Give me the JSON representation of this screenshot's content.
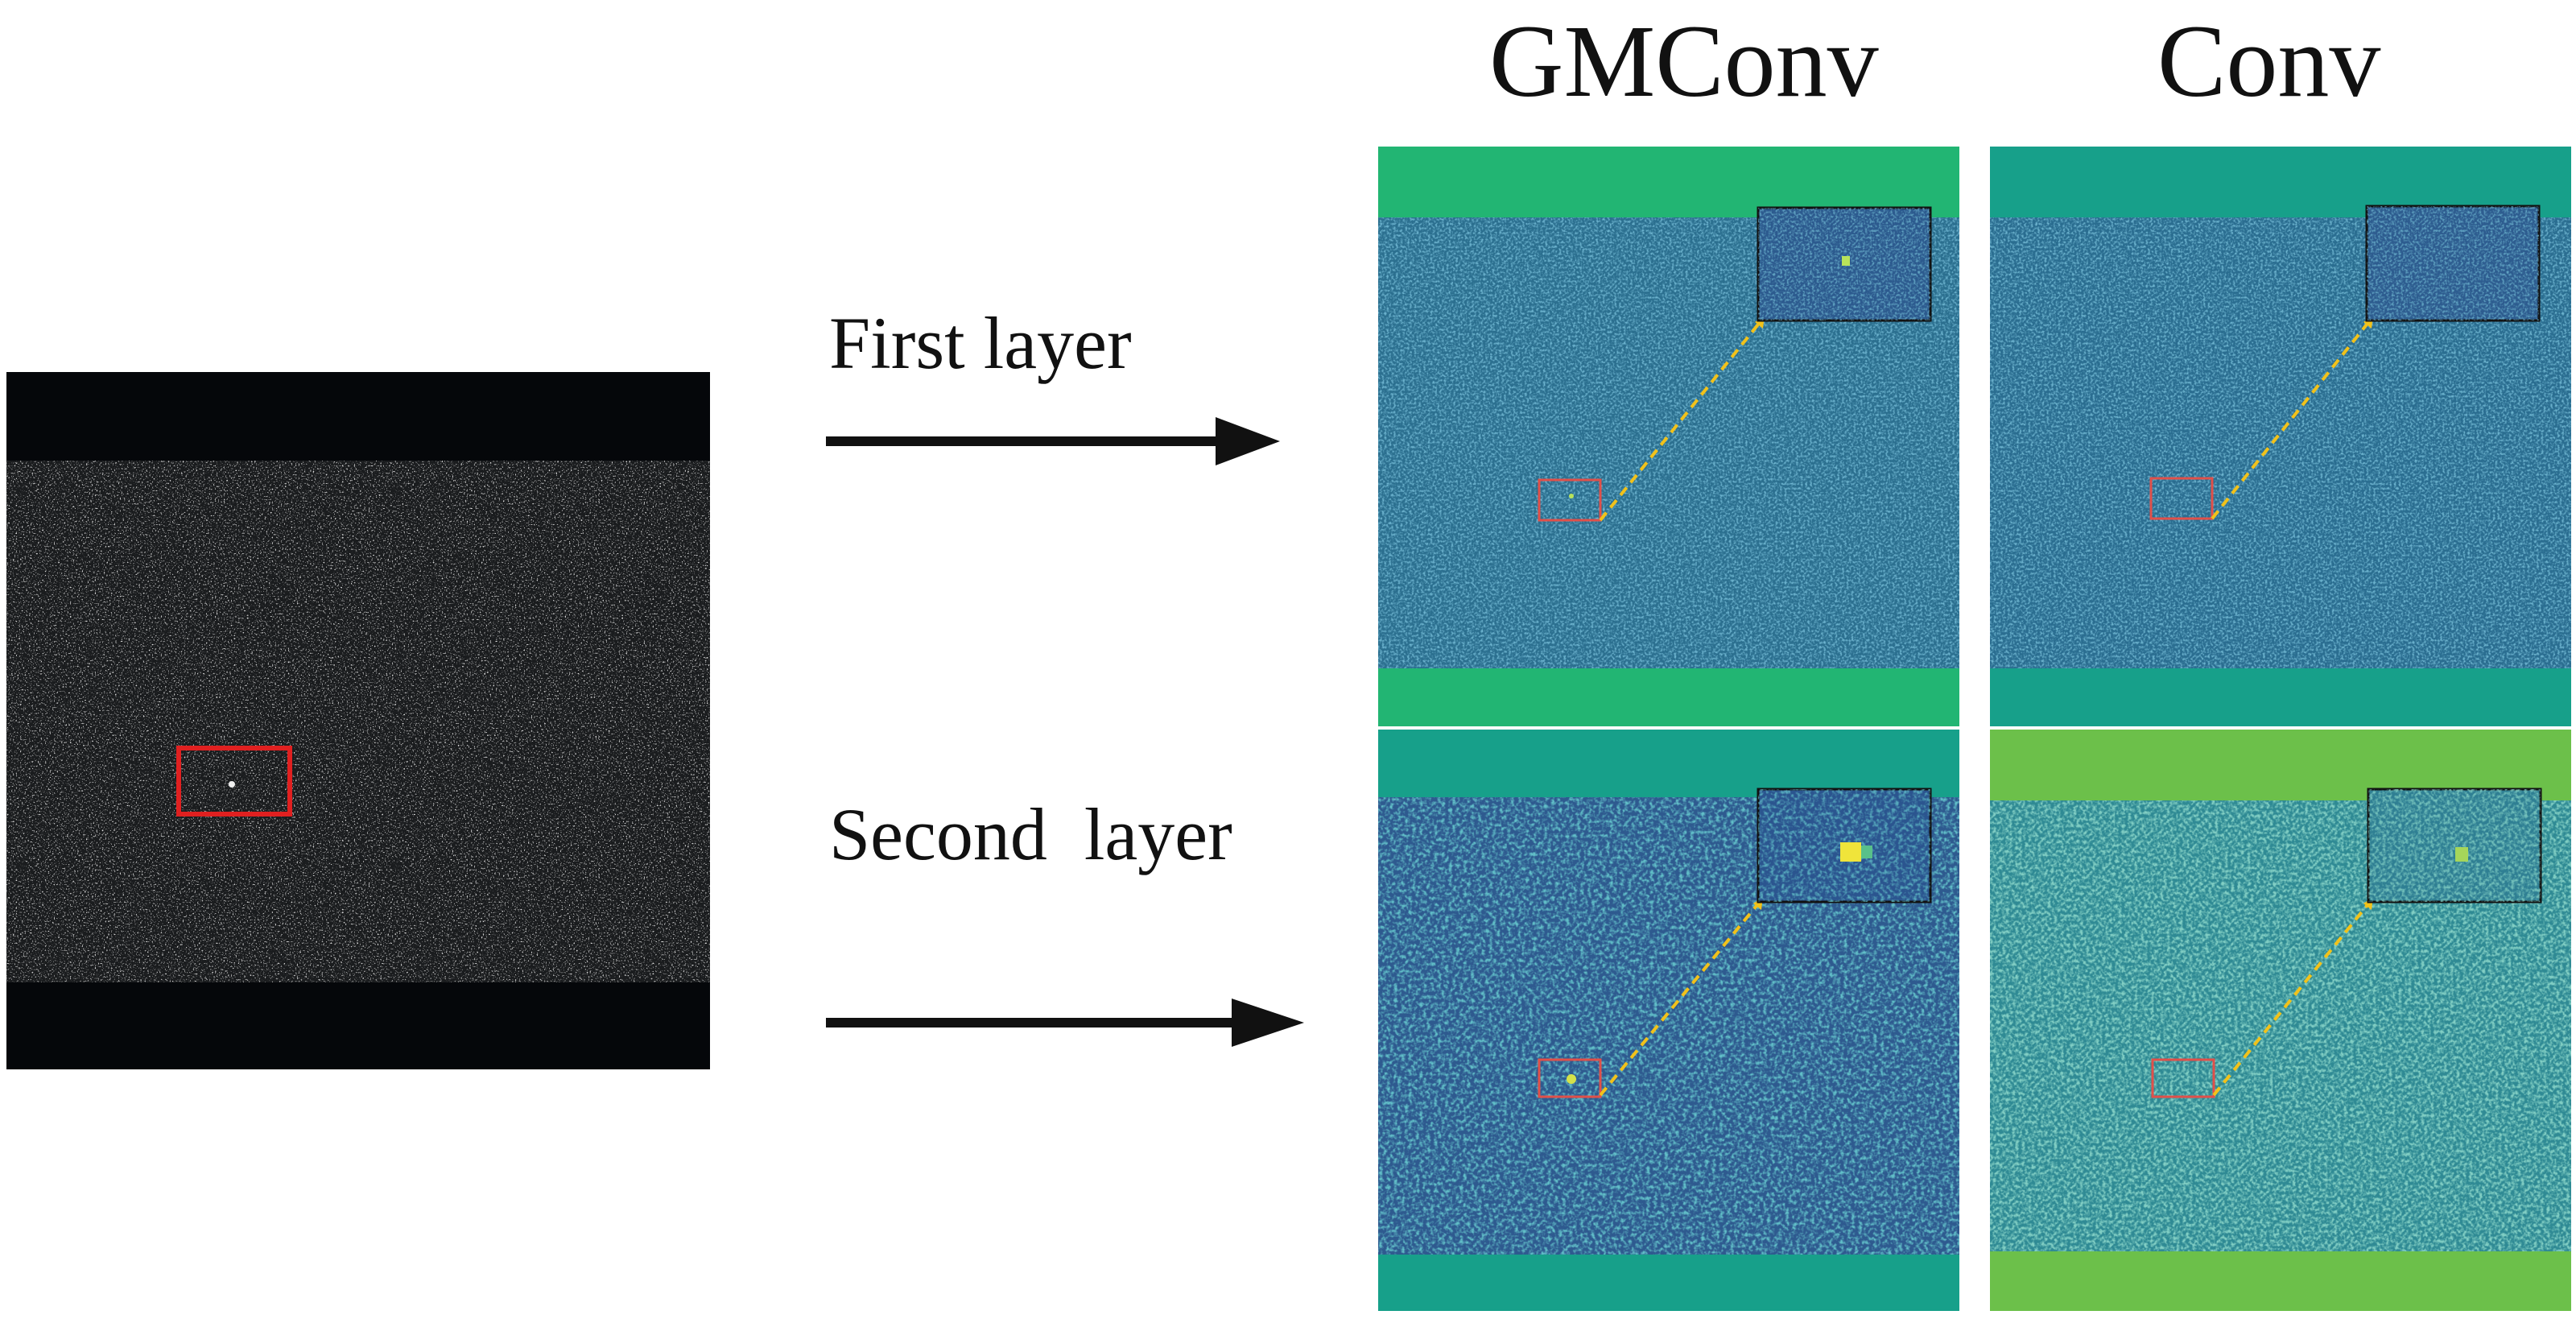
{
  "columns": {
    "gmconv": "GMConv",
    "conv": "Conv"
  },
  "rows": {
    "first": "First layer",
    "second": "Second  layer"
  },
  "colors": {
    "input_background": "#05070a",
    "target_box": "#e02020",
    "roi_box": "#e0504a",
    "zoom_arrow": "#f2c21a",
    "gmconv_first_band": "#22b573",
    "conv_first_band": "#17a08a",
    "gmconv_second_band": "#17a08a",
    "conv_second_band": "#6cc04a"
  },
  "icons": {
    "arrow": "right-arrow-icon",
    "zoom": "dashed-arrow-icon"
  }
}
